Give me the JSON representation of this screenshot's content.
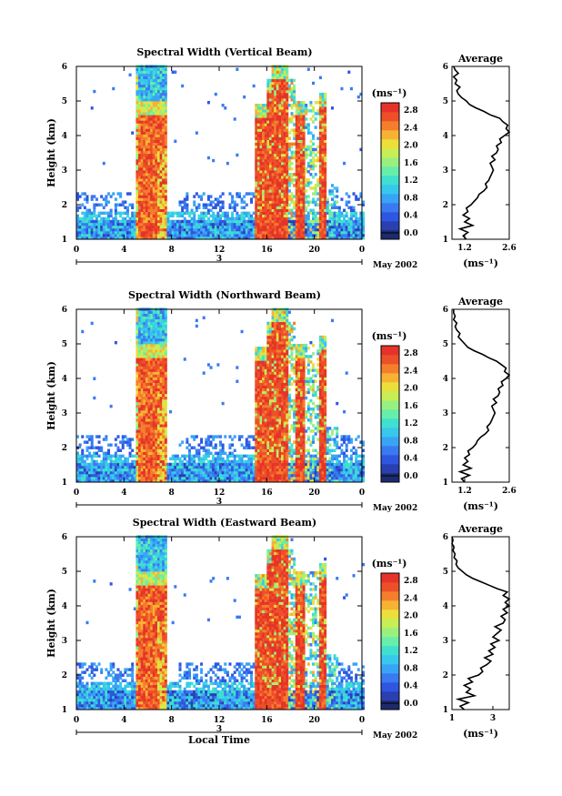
{
  "colors": {
    "scale": [
      "#1c2b6e",
      "#2a3fb0",
      "#2f56e0",
      "#3a7af0",
      "#39a4f5",
      "#37c8ec",
      "#3fe0cf",
      "#67eeaa",
      "#9af07f",
      "#c7ee55",
      "#ecdf3a",
      "#f7b233",
      "#f47e2c",
      "#ed5028",
      "#e5332a"
    ],
    "line": "#000000"
  },
  "chart_data": [
    {
      "type": "heatmap",
      "title": "Spectral Width (Vertical Beam)",
      "xlabel": "",
      "ylabel": "Height (km)",
      "x_ticks": [
        "0",
        "4",
        "8",
        "12",
        "16",
        "20",
        "0"
      ],
      "date_axis": {
        "day_label": "3",
        "month_label": "May 2002"
      },
      "xlim": [
        0,
        24
      ],
      "ylim": [
        1,
        6
      ],
      "y_ticks": [
        "1",
        "2",
        "3",
        "4",
        "5",
        "6"
      ],
      "colorbar": {
        "unit": "(ms⁻¹)",
        "ticks": [
          "2.8",
          "2.4",
          "2.0",
          "1.6",
          "1.2",
          "0.8",
          "0.4",
          "0.0"
        ],
        "range": [
          0,
          3.0
        ]
      },
      "profile": {
        "title": "Average",
        "xlabel": "(ms⁻¹)",
        "x_ticks": [
          "1.2",
          "2.6"
        ],
        "xlim": [
          0.8,
          2.6
        ],
        "y_ticks": [
          "1",
          "2",
          "3",
          "4",
          "5",
          "6"
        ],
        "height": [
          1.0,
          1.1,
          1.2,
          1.3,
          1.4,
          1.5,
          1.6,
          1.7,
          1.8,
          1.9,
          2.0,
          2.1,
          2.2,
          2.3,
          2.4,
          2.5,
          2.6,
          2.7,
          2.8,
          2.9,
          3.0,
          3.1,
          3.2,
          3.3,
          3.4,
          3.5,
          3.6,
          3.7,
          3.8,
          3.9,
          4.0,
          4.1,
          4.2,
          4.3,
          4.4,
          4.5,
          4.6,
          4.7,
          4.8,
          4.9,
          5.0,
          5.1,
          5.2,
          5.3,
          5.4,
          5.5,
          5.6,
          5.7,
          5.8,
          5.9,
          6.0
        ],
        "value": [
          1.25,
          1.15,
          1.3,
          1.05,
          1.45,
          1.2,
          1.35,
          1.15,
          1.3,
          1.25,
          1.4,
          1.5,
          1.6,
          1.65,
          1.8,
          1.9,
          1.85,
          1.95,
          2.0,
          2.05,
          2.1,
          2.05,
          2.0,
          2.15,
          2.05,
          2.2,
          2.25,
          2.2,
          2.35,
          2.3,
          2.45,
          2.6,
          2.5,
          2.55,
          2.4,
          2.3,
          2.0,
          1.8,
          1.55,
          1.35,
          1.25,
          1.1,
          1.0,
          0.95,
          1.05,
          0.9,
          0.95,
          0.85,
          1.0,
          0.9,
          0.85
        ]
      }
    },
    {
      "type": "heatmap",
      "title": "Spectral Width (Northward Beam)",
      "xlabel": "",
      "ylabel": "Height (km)",
      "x_ticks": [
        "0",
        "4",
        "8",
        "12",
        "16",
        "20",
        "0"
      ],
      "date_axis": {
        "day_label": "3",
        "month_label": "May 2002"
      },
      "xlim": [
        0,
        24
      ],
      "ylim": [
        1,
        6
      ],
      "y_ticks": [
        "1",
        "2",
        "3",
        "4",
        "5",
        "6"
      ],
      "colorbar": {
        "unit": "(ms⁻¹)",
        "ticks": [
          "2.8",
          "2.4",
          "2.0",
          "1.6",
          "1.2",
          "0.8",
          "0.4",
          "0.0"
        ],
        "range": [
          0,
          3.0
        ]
      },
      "profile": {
        "title": "Average",
        "xlabel": "(ms⁻¹)",
        "x_ticks": [
          "1.2",
          "2.6"
        ],
        "xlim": [
          0.8,
          2.6
        ],
        "y_ticks": [
          "1",
          "2",
          "3",
          "4",
          "5",
          "6"
        ],
        "height": [
          1.0,
          1.1,
          1.2,
          1.3,
          1.4,
          1.5,
          1.6,
          1.7,
          1.8,
          1.9,
          2.0,
          2.1,
          2.2,
          2.3,
          2.4,
          2.5,
          2.6,
          2.7,
          2.8,
          2.9,
          3.0,
          3.1,
          3.2,
          3.3,
          3.4,
          3.5,
          3.6,
          3.7,
          3.8,
          3.9,
          4.0,
          4.1,
          4.2,
          4.3,
          4.4,
          4.5,
          4.6,
          4.7,
          4.8,
          4.9,
          5.0,
          5.1,
          5.2,
          5.3,
          5.4,
          5.5,
          5.6,
          5.7,
          5.8,
          5.9,
          6.0
        ],
        "value": [
          1.2,
          1.1,
          1.35,
          1.05,
          1.4,
          1.15,
          1.3,
          1.2,
          1.35,
          1.3,
          1.45,
          1.55,
          1.6,
          1.7,
          1.85,
          1.95,
          1.9,
          2.0,
          2.05,
          2.1,
          2.15,
          2.1,
          2.05,
          2.2,
          2.1,
          2.25,
          2.3,
          2.25,
          2.4,
          2.35,
          2.5,
          2.6,
          2.45,
          2.5,
          2.35,
          2.2,
          1.95,
          1.75,
          1.5,
          1.3,
          1.2,
          1.1,
          1.0,
          1.05,
          0.95,
          0.9,
          0.95,
          0.85,
          0.9,
          0.85,
          0.85
        ]
      }
    },
    {
      "type": "heatmap",
      "title": "Spectral Width (Eastward Beam)",
      "xlabel": "Local Time",
      "ylabel": "Height (km)",
      "x_ticks": [
        "0",
        "4",
        "8",
        "12",
        "16",
        "20",
        "0"
      ],
      "date_axis": {
        "day_label": "3",
        "month_label": "May 2002"
      },
      "xlim": [
        0,
        24
      ],
      "ylim": [
        1,
        6
      ],
      "y_ticks": [
        "1",
        "2",
        "3",
        "4",
        "5",
        "6"
      ],
      "colorbar": {
        "unit": "(ms⁻¹)",
        "ticks": [
          "2.8",
          "2.4",
          "2.0",
          "1.6",
          "1.2",
          "0.8",
          "0.4",
          "0.0"
        ],
        "range": [
          0,
          3.0
        ]
      },
      "profile": {
        "title": "Average",
        "xlabel": "(ms⁻¹)",
        "x_ticks": [
          "1",
          "3"
        ],
        "xlim": [
          1.0,
          3.8
        ],
        "y_ticks": [
          "1",
          "2",
          "3",
          "4",
          "5",
          "6"
        ],
        "height": [
          1.0,
          1.1,
          1.2,
          1.3,
          1.4,
          1.5,
          1.6,
          1.7,
          1.8,
          1.9,
          2.0,
          2.1,
          2.2,
          2.3,
          2.4,
          2.5,
          2.6,
          2.7,
          2.8,
          2.9,
          3.0,
          3.1,
          3.2,
          3.3,
          3.4,
          3.5,
          3.6,
          3.7,
          3.8,
          3.9,
          4.0,
          4.1,
          4.2,
          4.3,
          4.4,
          4.5,
          4.6,
          4.7,
          4.8,
          4.9,
          5.0,
          5.1,
          5.2,
          5.3,
          5.4,
          5.5,
          5.6,
          5.7,
          5.8,
          5.9,
          6.0
        ],
        "value": [
          1.6,
          1.4,
          1.8,
          1.3,
          2.1,
          1.7,
          1.9,
          1.6,
          2.0,
          1.8,
          2.3,
          2.5,
          2.4,
          2.7,
          2.9,
          2.6,
          3.0,
          2.8,
          3.1,
          2.9,
          3.3,
          3.0,
          3.2,
          3.4,
          3.1,
          3.5,
          3.6,
          3.4,
          3.7,
          3.5,
          3.8,
          3.6,
          3.8,
          3.5,
          3.7,
          3.2,
          2.8,
          2.4,
          2.0,
          1.7,
          1.5,
          1.3,
          1.2,
          1.25,
          1.1,
          1.15,
          1.05,
          1.1,
          1.0,
          1.05,
          1.0
        ]
      }
    }
  ]
}
